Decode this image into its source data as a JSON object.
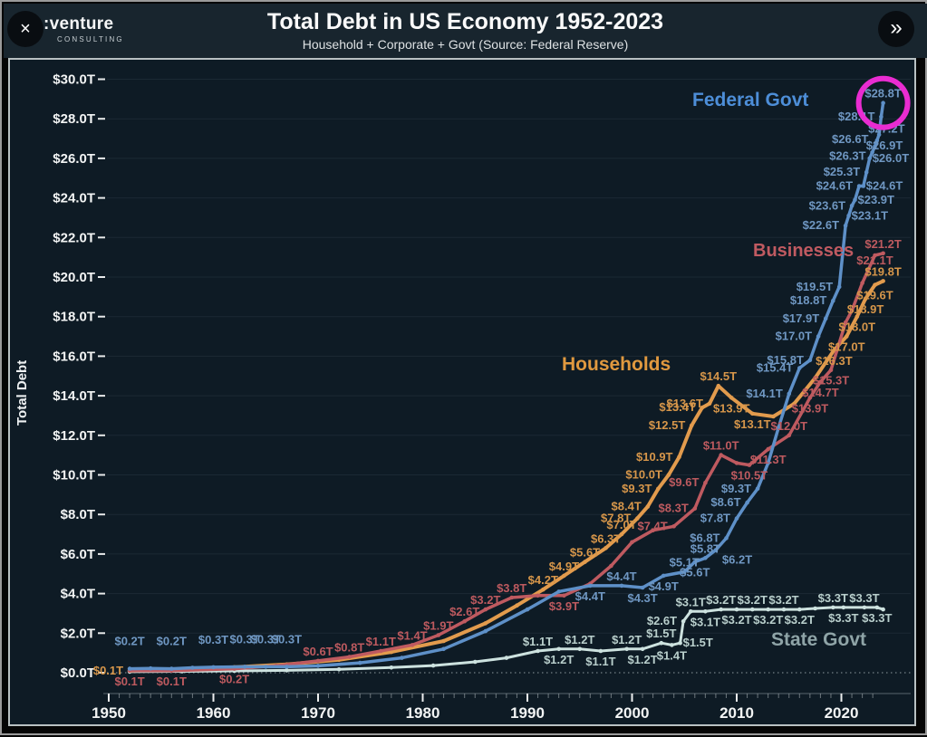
{
  "window": {
    "close_label": "×",
    "next_label": "»"
  },
  "logo": {
    "brand": ":venture",
    "sub": "CONSULTING"
  },
  "header": {
    "title": "Total Debt in US Economy 1952-2023",
    "subtitle": "Household + Corporate + Govt (Source: Federal Reserve)"
  },
  "chart_data": {
    "type": "line",
    "title": "Total Debt in US Economy 1952-2023",
    "subtitle": "Household + Corporate + Govt (Source: Federal Reserve)",
    "xlabel": "",
    "ylabel": "Total Debt",
    "x_range": [
      1950,
      2024
    ],
    "y_range": [
      0,
      30
    ],
    "grid": true,
    "x_ticks": [
      1950,
      1960,
      1970,
      1980,
      1990,
      2000,
      2010,
      2020
    ],
    "y_ticks": [
      {
        "value": 0,
        "label": "$0.0T"
      },
      {
        "value": 2,
        "label": "$2.0T"
      },
      {
        "value": 4,
        "label": "$4.0T"
      },
      {
        "value": 6,
        "label": "$6.0T"
      },
      {
        "value": 8,
        "label": "$8.0T"
      },
      {
        "value": 10,
        "label": "$10.0T"
      },
      {
        "value": 12,
        "label": "$12.0T"
      },
      {
        "value": 14,
        "label": "$14.0T"
      },
      {
        "value": 16,
        "label": "$16.0T"
      },
      {
        "value": 18,
        "label": "$18.0T"
      },
      {
        "value": 20,
        "label": "$20.0T"
      },
      {
        "value": 22,
        "label": "$22.0T"
      },
      {
        "value": 24,
        "label": "$24.0T"
      },
      {
        "value": 26,
        "label": "$26.0T"
      },
      {
        "value": 28,
        "label": "$28.0T"
      },
      {
        "value": 30,
        "label": "$30.0T"
      }
    ],
    "highlight": {
      "target": "Federal Govt last point",
      "color": "#e92cd1"
    },
    "series": [
      {
        "name": "Federal Govt",
        "color": "#5e90c8",
        "label_color": "#6f97c2",
        "name_color": "#4d8ed8",
        "line_width": 3.5,
        "points": [
          [
            1952,
            0.2,
            "$0.2T",
            "a",
            -20
          ],
          [
            1954,
            0.22
          ],
          [
            1956,
            0.2,
            "$0.2T",
            "a",
            -20
          ],
          [
            1958,
            0.25
          ],
          [
            1960,
            0.28,
            "$0.3T",
            "a",
            -20
          ],
          [
            1963,
            0.3,
            "$0.3T",
            "a",
            -20
          ],
          [
            1965,
            0.3,
            "$0.3T",
            "a",
            -20
          ],
          [
            1967,
            0.3,
            "$0.3T",
            "a",
            -20
          ],
          [
            1970,
            0.35
          ],
          [
            1974,
            0.5
          ],
          [
            1978,
            0.75
          ],
          [
            1982,
            1.2
          ],
          [
            1986,
            2.1
          ],
          [
            1990,
            3.2
          ],
          [
            1993,
            4.1
          ],
          [
            1996,
            4.4,
            "$4.4T",
            "b"
          ],
          [
            1999,
            4.4,
            "$4.4T",
            "a"
          ],
          [
            2001,
            4.3,
            "$4.3T",
            "b"
          ],
          [
            2003,
            4.9,
            "$4.9T",
            "b"
          ],
          [
            2005,
            5.1,
            "$5.1T",
            "a"
          ],
          [
            2006,
            5.6,
            "$5.6T",
            "b"
          ],
          [
            2007,
            5.8,
            "$5.8T",
            "a"
          ],
          [
            2008,
            6.2,
            "$6.2T",
            "br"
          ],
          [
            2009,
            6.8,
            "$6.8T",
            "l"
          ],
          [
            2010,
            7.8,
            "$7.8T",
            "l"
          ],
          [
            2011,
            8.6,
            "$8.6T",
            "l"
          ],
          [
            2012,
            9.3,
            "$9.3T",
            "l"
          ],
          [
            2013,
            10.6
          ],
          [
            2014,
            12.4
          ],
          [
            2015,
            14.1,
            "$14.1T",
            "l"
          ],
          [
            2016,
            15.4,
            "$15.4T",
            "l"
          ],
          [
            2017,
            15.8,
            "$15.8T",
            "l"
          ],
          [
            2017.8,
            17.0,
            "$17.0T",
            "l"
          ],
          [
            2018.5,
            17.9,
            "$17.9T",
            "l"
          ],
          [
            2019.2,
            18.8,
            "$18.8T",
            "l"
          ],
          [
            2019.8,
            19.5,
            "$19.5T",
            "l"
          ],
          [
            2020.4,
            22.6,
            "$22.6T",
            "l"
          ],
          [
            2020.7,
            23.1,
            "$23.1T",
            "r"
          ],
          [
            2021,
            23.6,
            "$23.6T",
            "l"
          ],
          [
            2021.3,
            23.9,
            "$23.9T",
            "r"
          ],
          [
            2021.7,
            24.6,
            "$24.6T",
            "l"
          ],
          [
            2022.1,
            24.6,
            "$24.6T",
            "r"
          ],
          [
            2022.4,
            25.3,
            "$25.3T",
            "l"
          ],
          [
            2022.7,
            26.0,
            "$26.0T",
            "r"
          ],
          [
            2022.95,
            26.3,
            "$26.3T",
            "l",
            4
          ],
          [
            2023.2,
            26.6,
            "$26.6T",
            "l",
            -8
          ],
          [
            2023.4,
            26.9,
            "$26.9T",
            "rl",
            6
          ],
          [
            2023.6,
            27.2,
            "$27.2T",
            "rl",
            -6
          ],
          [
            2023.8,
            28.1,
            "$28.1T",
            "l"
          ],
          [
            2023.99,
            28.8,
            "$28.8T",
            "a"
          ]
        ]
      },
      {
        "name": "Businesses",
        "color": "#bf5a60",
        "label_color": "#bd5a5f",
        "name_color": "#c05a61",
        "line_width": 3.5,
        "points": [
          [
            1952,
            0.1,
            "$0.1T",
            "b"
          ],
          [
            1956,
            0.1,
            "$0.1T",
            "b"
          ],
          [
            1962,
            0.2,
            "$0.2T",
            "b"
          ],
          [
            1966,
            0.35
          ],
          [
            1970,
            0.6,
            "$0.6T",
            "a"
          ],
          [
            1973,
            0.8,
            "$0.8T",
            "a"
          ],
          [
            1976,
            1.1,
            "$1.1T",
            "a"
          ],
          [
            1979,
            1.4,
            "$1.4T",
            "a"
          ],
          [
            1981.5,
            1.9,
            "$1.9T",
            "a"
          ],
          [
            1984,
            2.6,
            "$2.6T",
            "a"
          ],
          [
            1986,
            3.2,
            "$3.2T",
            "a"
          ],
          [
            1988.5,
            3.8,
            "$3.8T",
            "a"
          ],
          [
            1991,
            3.9
          ],
          [
            1993.5,
            3.9,
            "$3.9T",
            "b"
          ],
          [
            1996,
            4.5
          ],
          [
            1998,
            5.4
          ],
          [
            2000,
            6.6
          ],
          [
            2002,
            7.2
          ],
          [
            2004,
            7.4,
            "$7.4T",
            "l"
          ],
          [
            2006,
            8.3,
            "$8.3T",
            "l"
          ],
          [
            2007,
            9.6,
            "$9.6T",
            "l"
          ],
          [
            2008.5,
            11.0,
            "$11.0T",
            "a"
          ],
          [
            2010,
            10.6
          ],
          [
            2011.2,
            10.5,
            "$10.5T",
            "b"
          ],
          [
            2013,
            11.3,
            "$11.3T",
            "b"
          ],
          [
            2015,
            12.0,
            "$12.0T",
            "a"
          ],
          [
            2017,
            13.9,
            "$13.9T",
            "b"
          ],
          [
            2018,
            14.7,
            "$14.7T",
            "b"
          ],
          [
            2019,
            15.3,
            "$15.3T",
            "b"
          ],
          [
            2020.4,
            17.7
          ],
          [
            2021,
            18.3
          ],
          [
            2022,
            19.7
          ],
          [
            2023.2,
            21.1,
            "$21.1T",
            "b",
            -6
          ],
          [
            2023.99,
            21.2,
            "$21.2T",
            "a"
          ]
        ]
      },
      {
        "name": "Households",
        "color": "#e29b4d",
        "label_color": "#d6964a",
        "name_color": "#e0993f",
        "line_width": 4,
        "points": [
          [
            1952,
            0.1,
            "$0.1T",
            "l"
          ],
          [
            1957,
            0.18
          ],
          [
            1962,
            0.28
          ],
          [
            1967,
            0.42
          ],
          [
            1972,
            0.65
          ],
          [
            1977,
            1.05
          ],
          [
            1982,
            1.6
          ],
          [
            1986,
            2.5
          ],
          [
            1989,
            3.4
          ],
          [
            1991.5,
            4.2,
            "$4.2T",
            "a"
          ],
          [
            1993.5,
            4.9,
            "$4.9T",
            "a"
          ],
          [
            1995.5,
            5.6,
            "$5.6T",
            "a"
          ],
          [
            1997.5,
            6.3,
            "$6.3T",
            "a"
          ],
          [
            1999,
            7.0,
            "$7.0T",
            "a"
          ],
          [
            2000.5,
            7.8,
            "$7.8T",
            "l"
          ],
          [
            2001.5,
            8.4,
            "$8.4T",
            "l"
          ],
          [
            2002.5,
            9.3,
            "$9.3T",
            "l"
          ],
          [
            2003.5,
            10.0,
            "$10.0T",
            "l"
          ],
          [
            2004.5,
            10.9,
            "$10.9T",
            "l"
          ],
          [
            2005.7,
            12.5,
            "$12.5T",
            "l"
          ],
          [
            2006.7,
            13.4,
            "$13.4T",
            "l"
          ],
          [
            2007.4,
            13.6,
            "$13.6T",
            "l"
          ],
          [
            2008.25,
            14.5,
            "$14.5T",
            "a"
          ],
          [
            2009.5,
            13.9,
            "$13.9T",
            "b"
          ],
          [
            2011.5,
            13.1,
            "$13.1T",
            "b"
          ],
          [
            2013.5,
            12.95
          ],
          [
            2015.5,
            13.6
          ],
          [
            2017.5,
            14.9
          ],
          [
            2019.3,
            16.3,
            "$16.3T",
            "b"
          ],
          [
            2020.5,
            17.0,
            "$17.0T",
            "b"
          ],
          [
            2021.5,
            18.0,
            "$18.0T",
            "b"
          ],
          [
            2022.3,
            18.9,
            "$18.9T",
            "b"
          ],
          [
            2023.2,
            19.6,
            "$19.6T",
            "b"
          ],
          [
            2023.99,
            19.8,
            "$19.8T",
            "a"
          ]
        ]
      },
      {
        "name": "State Govt",
        "color": "#cde2df",
        "label_color": "#b9cfcc",
        "name_color": "#8fa4a7",
        "line_width": 3,
        "points": [
          [
            1952,
            0.05
          ],
          [
            1957,
            0.07
          ],
          [
            1962,
            0.09
          ],
          [
            1967,
            0.12
          ],
          [
            1972,
            0.17
          ],
          [
            1977,
            0.26
          ],
          [
            1981,
            0.36
          ],
          [
            1985,
            0.55
          ],
          [
            1988,
            0.75
          ],
          [
            1991,
            1.1,
            "$1.1T",
            "a"
          ],
          [
            1993,
            1.2,
            "$1.2T",
            "b"
          ],
          [
            1995,
            1.2,
            "$1.2T",
            "a"
          ],
          [
            1997,
            1.1,
            "$1.1T",
            "b"
          ],
          [
            1999.5,
            1.2,
            "$1.2T",
            "a"
          ],
          [
            2001,
            1.2,
            "$1.2T",
            "b"
          ],
          [
            2002.8,
            1.5,
            "$1.5T",
            "a"
          ],
          [
            2003.8,
            1.4,
            "$1.4T",
            "b"
          ],
          [
            2004.6,
            1.5,
            "$1.5T",
            "r"
          ],
          [
            2004.9,
            2.6,
            "$2.6T",
            "l"
          ],
          [
            2005.6,
            3.1,
            "$3.1T",
            "a"
          ],
          [
            2007,
            3.1,
            "$3.1T",
            "b"
          ],
          [
            2008.5,
            3.2,
            "$3.2T",
            "a"
          ],
          [
            2010,
            3.2,
            "$3.2T",
            "b"
          ],
          [
            2011.5,
            3.2,
            "$3.2T",
            "a"
          ],
          [
            2013,
            3.2,
            "$3.2T",
            "b"
          ],
          [
            2014.5,
            3.2,
            "$3.2T",
            "a"
          ],
          [
            2016,
            3.2,
            "$3.2T",
            "b"
          ],
          [
            2017.5,
            3.25
          ],
          [
            2019.2,
            3.3,
            "$3.3T",
            "a"
          ],
          [
            2020.2,
            3.3,
            "$3.3T",
            "b"
          ],
          [
            2022.2,
            3.3,
            "$3.3T",
            "a"
          ],
          [
            2023.4,
            3.3,
            "$3.3T",
            "b"
          ],
          [
            2023.99,
            3.2
          ]
        ]
      }
    ]
  }
}
